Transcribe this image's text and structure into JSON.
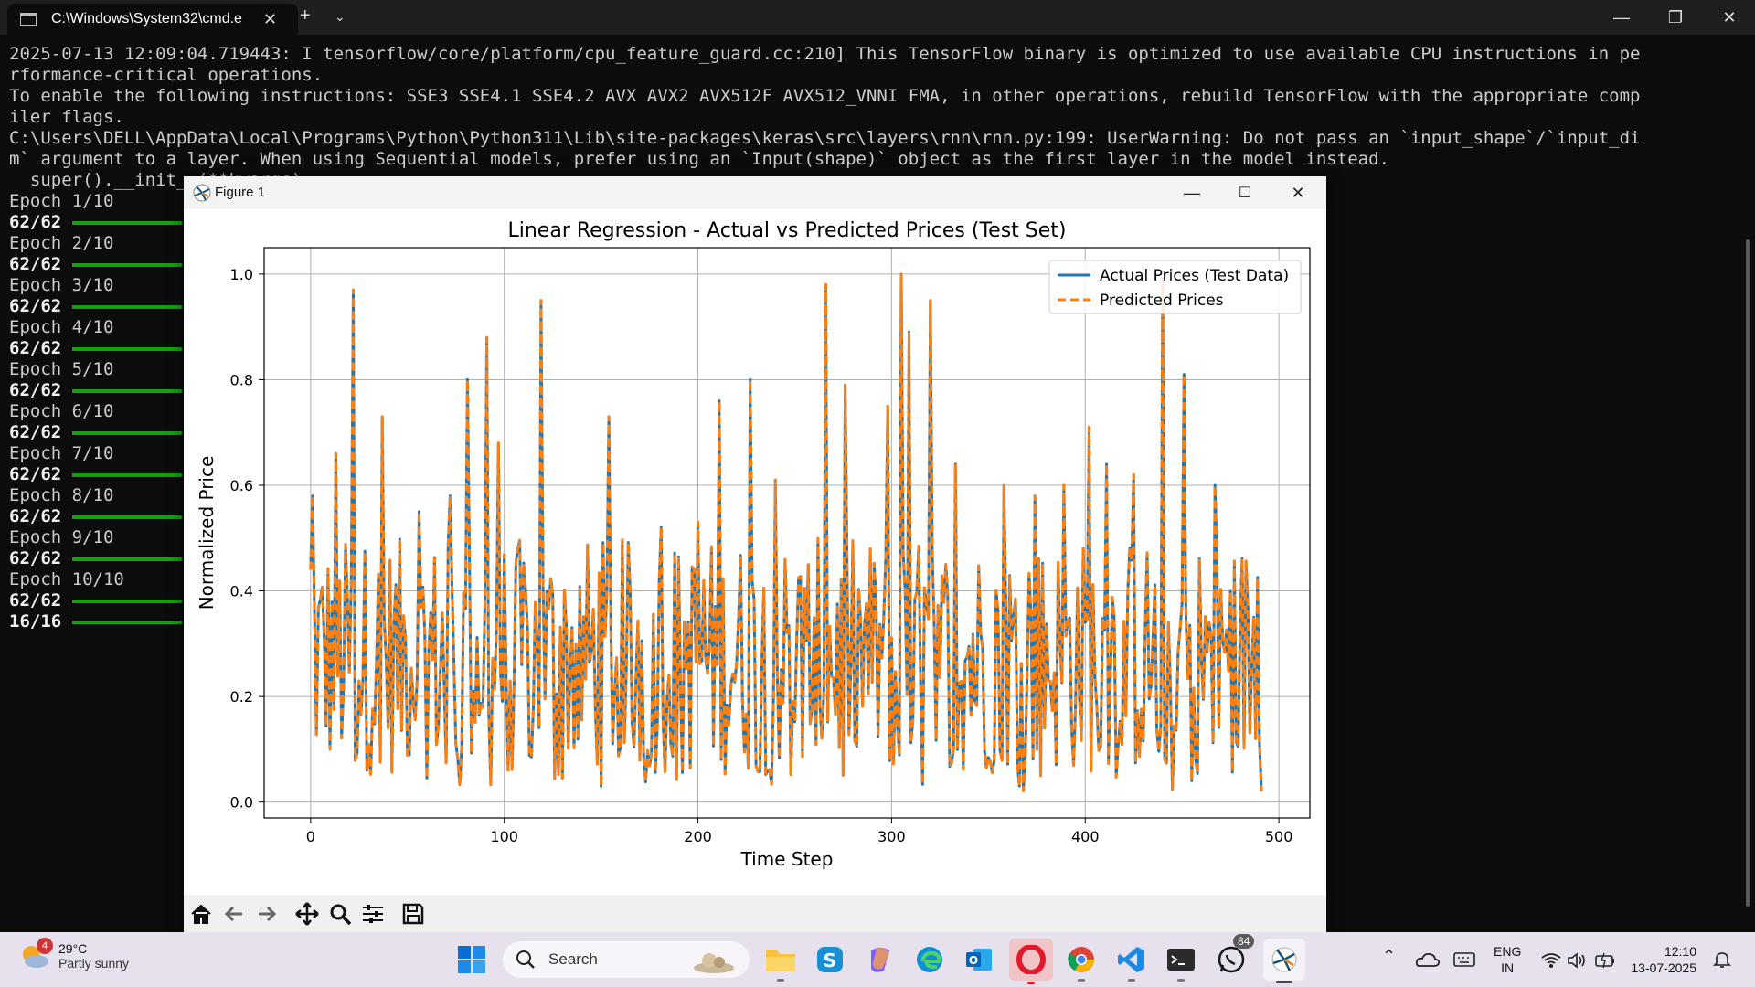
{
  "terminal": {
    "tab_title": "C:\\Windows\\System32\\cmd.e",
    "lines": [
      "2025-07-13 12:09:04.719443: I tensorflow/core/platform/cpu_feature_guard.cc:210] This TensorFlow binary is optimized to use available CPU instructions in pe",
      "rformance-critical operations.",
      "To enable the following instructions: SSE3 SSE4.1 SSE4.2 AVX AVX2 AVX512F AVX512_VNNI FMA, in other operations, rebuild TensorFlow with the appropriate comp",
      "iler flags.",
      "C:\\Users\\DELL\\AppData\\Local\\Programs\\Python\\Python311\\Lib\\site-packages\\keras\\src\\layers\\rnn\\rnn.py:199: UserWarning: Do not pass an `input_shape`/`input_di",
      "m` argument to a layer. When using Sequential models, prefer using an `Input(shape)` object as the first layer in the model instead.",
      "  super().__init__(**kwargs)"
    ],
    "epochs": [
      {
        "text": "Epoch 1/10",
        "bold": false,
        "bar": false
      },
      {
        "text": "62/62",
        "bold": true,
        "bar": true
      },
      {
        "text": "Epoch 2/10",
        "bold": false,
        "bar": false
      },
      {
        "text": "62/62",
        "bold": true,
        "bar": true
      },
      {
        "text": "Epoch 3/10",
        "bold": false,
        "bar": false
      },
      {
        "text": "62/62",
        "bold": true,
        "bar": true
      },
      {
        "text": "Epoch 4/10",
        "bold": false,
        "bar": false
      },
      {
        "text": "62/62",
        "bold": true,
        "bar": true
      },
      {
        "text": "Epoch 5/10",
        "bold": false,
        "bar": false
      },
      {
        "text": "62/62",
        "bold": true,
        "bar": true
      },
      {
        "text": "Epoch 6/10",
        "bold": false,
        "bar": false
      },
      {
        "text": "62/62",
        "bold": true,
        "bar": true
      },
      {
        "text": "Epoch 7/10",
        "bold": false,
        "bar": false
      },
      {
        "text": "62/62",
        "bold": true,
        "bar": true
      },
      {
        "text": "Epoch 8/10",
        "bold": false,
        "bar": false
      },
      {
        "text": "62/62",
        "bold": true,
        "bar": true
      },
      {
        "text": "Epoch 9/10",
        "bold": false,
        "bar": false
      },
      {
        "text": "62/62",
        "bold": true,
        "bar": true
      },
      {
        "text": "Epoch 10/10",
        "bold": false,
        "bar": false
      },
      {
        "text": "62/62",
        "bold": true,
        "bar": true
      },
      {
        "text": "16/16",
        "bold": true,
        "bar": true
      }
    ]
  },
  "figure": {
    "window_title": "Figure 1",
    "toolbar": [
      "home-icon",
      "back-arrow-icon",
      "forward-arrow-icon",
      "pan-icon",
      "zoom-icon",
      "configure-subplots-icon",
      "save-icon"
    ]
  },
  "chart_data": {
    "type": "line",
    "title": "Linear Regression - Actual vs Predicted Prices (Test Set)",
    "xlabel": "Time Step",
    "ylabel": "Normalized Price",
    "xlim": [
      -24,
      516
    ],
    "ylim": [
      -0.03,
      1.05
    ],
    "xticks": [
      0,
      100,
      200,
      300,
      400,
      500
    ],
    "yticks": [
      0.0,
      0.2,
      0.4,
      0.6,
      0.8,
      1.0
    ],
    "grid": true,
    "legend": "top-right",
    "colors": {
      "actual": "#1f77b4",
      "predicted": "#ff7f0e"
    },
    "series": [
      {
        "name": "Actual Prices (Test Data)",
        "style": "solid"
      },
      {
        "name": "Predicted Prices",
        "style": "dashed"
      }
    ],
    "x_range": [
      0,
      491
    ],
    "peaks": [
      {
        "x": 1,
        "y": 0.58
      },
      {
        "x": 13,
        "y": 0.66
      },
      {
        "x": 22,
        "y": 0.97
      },
      {
        "x": 37,
        "y": 0.73
      },
      {
        "x": 56,
        "y": 0.55
      },
      {
        "x": 72,
        "y": 0.58
      },
      {
        "x": 81,
        "y": 0.8
      },
      {
        "x": 91,
        "y": 0.88
      },
      {
        "x": 97,
        "y": 0.68
      },
      {
        "x": 119,
        "y": 0.95
      },
      {
        "x": 154,
        "y": 0.73
      },
      {
        "x": 181,
        "y": 0.52
      },
      {
        "x": 200,
        "y": 0.53
      },
      {
        "x": 211,
        "y": 0.76
      },
      {
        "x": 227,
        "y": 0.8
      },
      {
        "x": 240,
        "y": 0.61
      },
      {
        "x": 266,
        "y": 0.98
      },
      {
        "x": 276,
        "y": 0.79
      },
      {
        "x": 298,
        "y": 0.75
      },
      {
        "x": 305,
        "y": 1.0
      },
      {
        "x": 309,
        "y": 0.89
      },
      {
        "x": 320,
        "y": 0.95
      },
      {
        "x": 333,
        "y": 0.64
      },
      {
        "x": 358,
        "y": 0.6
      },
      {
        "x": 374,
        "y": 0.58
      },
      {
        "x": 389,
        "y": 0.6
      },
      {
        "x": 402,
        "y": 0.71
      },
      {
        "x": 411,
        "y": 0.64
      },
      {
        "x": 425,
        "y": 0.62
      },
      {
        "x": 440,
        "y": 0.99
      },
      {
        "x": 451,
        "y": 0.81
      },
      {
        "x": 467,
        "y": 0.6
      },
      {
        "x": 488,
        "y": 0.12
      },
      {
        "x": 491,
        "y": 0.02
      }
    ]
  },
  "taskbar": {
    "weather_temp": "29°C",
    "weather_desc": "Partly sunny",
    "weather_badge": "4",
    "search_placeholder": "Search",
    "whatsapp_badge": "84",
    "lang_line1": "ENG",
    "lang_line2": "IN",
    "time": "12:10",
    "date": "13-07-2025"
  }
}
